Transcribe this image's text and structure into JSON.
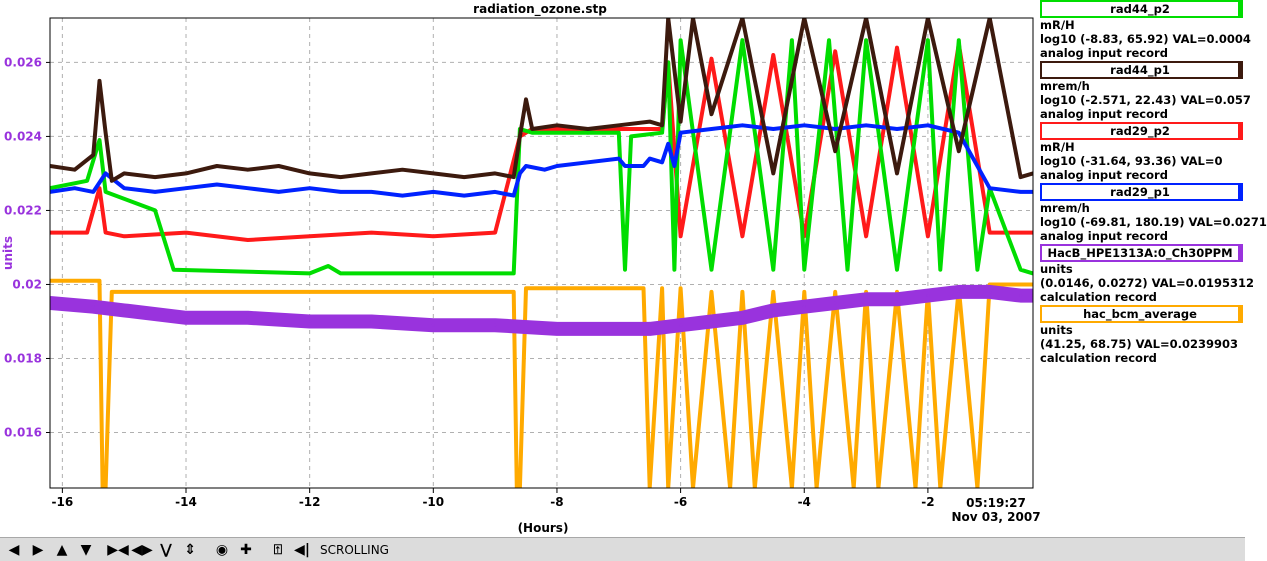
{
  "chart_data": {
    "type": "line",
    "title": "radiation_ozone.stp",
    "xlabel": "(Hours)",
    "ylabel": "units",
    "xlim": [
      -16.2,
      -0.3
    ],
    "ylim": [
      0.0145,
      0.0272
    ],
    "x_ticks": [
      -16,
      -14,
      -12,
      -10,
      -8,
      -6,
      -4,
      -2
    ],
    "y_ticks": [
      0.016,
      0.018,
      0.02,
      0.022,
      0.024,
      0.026
    ],
    "y_tick_labels": [
      "0.016",
      "0.018",
      "0.02",
      "0.022",
      "0.024",
      "0.026"
    ],
    "end_time_label": "05:19:27",
    "end_date_label": "Nov 03, 2007",
    "grid": true,
    "legend_position": "right",
    "series": [
      {
        "name": "rad44_p2",
        "color": "#00dd00",
        "x": [
          -16.2,
          -15.6,
          -15.4,
          -15.3,
          -14.5,
          -14.2,
          -12.0,
          -11.7,
          -11.5,
          -9.0,
          -8.7,
          -8.6,
          -8.4,
          -8.2,
          -7.0,
          -6.9,
          -6.8,
          -6.3,
          -6.2,
          -6.1,
          -6.0,
          -5.5,
          -5.0,
          -4.5,
          -4.2,
          -4.0,
          -3.6,
          -3.3,
          -3.0,
          -2.5,
          -2.0,
          -1.8,
          -1.5,
          -1.2,
          -1.0,
          -0.5,
          -0.3
        ],
        "values": [
          0.0226,
          0.0228,
          0.0239,
          0.0225,
          0.022,
          0.0204,
          0.0203,
          0.0205,
          0.0203,
          0.0203,
          0.0203,
          0.0242,
          0.0241,
          0.0241,
          0.0241,
          0.0204,
          0.024,
          0.0241,
          0.026,
          0.0204,
          0.0266,
          0.0204,
          0.0266,
          0.0204,
          0.0266,
          0.0204,
          0.0266,
          0.0204,
          0.0266,
          0.0204,
          0.0266,
          0.0204,
          0.0266,
          0.0204,
          0.0226,
          0.0204,
          0.0203
        ]
      },
      {
        "name": "rad44_p1",
        "color": "#3c1a0e",
        "x": [
          -16.2,
          -15.8,
          -15.5,
          -15.4,
          -15.3,
          -15.2,
          -15.0,
          -14.5,
          -14.0,
          -13.5,
          -13.0,
          -12.5,
          -12.0,
          -11.5,
          -11.0,
          -10.5,
          -10.0,
          -9.5,
          -9.0,
          -8.7,
          -8.6,
          -8.5,
          -8.4,
          -8.0,
          -7.5,
          -7.0,
          -6.5,
          -6.3,
          -6.2,
          -6.0,
          -5.8,
          -5.5,
          -5.0,
          -4.5,
          -4.0,
          -3.5,
          -3.0,
          -2.5,
          -2.0,
          -1.5,
          -1.0,
          -0.5,
          -0.3
        ],
        "values": [
          0.0232,
          0.0231,
          0.0235,
          0.0255,
          0.0241,
          0.0228,
          0.023,
          0.0229,
          0.023,
          0.0232,
          0.0231,
          0.0232,
          0.023,
          0.0229,
          0.023,
          0.0231,
          0.023,
          0.0229,
          0.023,
          0.0229,
          0.024,
          0.025,
          0.0242,
          0.0243,
          0.0242,
          0.0243,
          0.0244,
          0.0243,
          0.0272,
          0.0244,
          0.0272,
          0.0246,
          0.0272,
          0.023,
          0.0272,
          0.0236,
          0.0272,
          0.023,
          0.0272,
          0.0236,
          0.0272,
          0.0229,
          0.023
        ]
      },
      {
        "name": "rad29_p2",
        "color": "#ff1a1a",
        "x": [
          -16.2,
          -15.6,
          -15.4,
          -15.3,
          -15.0,
          -14.0,
          -13.0,
          -12.0,
          -11.0,
          -10.0,
          -9.0,
          -8.6,
          -8.5,
          -8.4,
          -8.0,
          -7.5,
          -7.0,
          -6.5,
          -6.3,
          -6.2,
          -6.0,
          -5.5,
          -5.0,
          -4.5,
          -4.0,
          -3.5,
          -3.0,
          -2.5,
          -2.0,
          -1.5,
          -1.0,
          -0.5,
          -0.3
        ],
        "values": [
          0.0214,
          0.0214,
          0.0226,
          0.0214,
          0.0213,
          0.0214,
          0.0212,
          0.0213,
          0.0214,
          0.0213,
          0.0214,
          0.024,
          0.0241,
          0.0242,
          0.0242,
          0.0241,
          0.0242,
          0.0242,
          0.0242,
          0.026,
          0.0213,
          0.0261,
          0.0213,
          0.0262,
          0.0213,
          0.0263,
          0.0213,
          0.0264,
          0.0213,
          0.0265,
          0.0214,
          0.0214,
          0.0214
        ]
      },
      {
        "name": "rad29_p1",
        "color": "#0022ff",
        "x": [
          -16.2,
          -15.8,
          -15.5,
          -15.3,
          -15.0,
          -14.5,
          -14.0,
          -13.5,
          -13.0,
          -12.5,
          -12.0,
          -11.5,
          -11.0,
          -10.5,
          -10.0,
          -9.5,
          -9.0,
          -8.7,
          -8.6,
          -8.5,
          -8.2,
          -8.0,
          -7.5,
          -7.0,
          -6.9,
          -6.6,
          -6.5,
          -6.3,
          -6.2,
          -6.1,
          -6.0,
          -5.5,
          -5.0,
          -4.5,
          -4.0,
          -3.5,
          -3.0,
          -2.5,
          -2.0,
          -1.5,
          -1.0,
          -0.5,
          -0.3
        ],
        "values": [
          0.0225,
          0.0226,
          0.0225,
          0.023,
          0.0226,
          0.0225,
          0.0226,
          0.0227,
          0.0226,
          0.0225,
          0.0226,
          0.0225,
          0.0225,
          0.0224,
          0.0225,
          0.0224,
          0.0225,
          0.0224,
          0.023,
          0.0232,
          0.0231,
          0.0232,
          0.0233,
          0.0234,
          0.0232,
          0.0232,
          0.0234,
          0.0233,
          0.0238,
          0.0232,
          0.0241,
          0.0242,
          0.0243,
          0.0242,
          0.0243,
          0.0242,
          0.0243,
          0.0242,
          0.0243,
          0.0241,
          0.0226,
          0.0225,
          0.0225
        ]
      },
      {
        "name": "HacB_HPE1313A:0_Ch30PPM",
        "color": "#9933dd",
        "x": [
          -16.2,
          -15.5,
          -15.0,
          -14.0,
          -13.0,
          -12.0,
          -11.0,
          -10.0,
          -9.0,
          -8.0,
          -7.0,
          -6.5,
          -6.0,
          -5.5,
          -5.0,
          -4.5,
          -4.0,
          -3.5,
          -3.0,
          -2.5,
          -2.0,
          -1.5,
          -1.0,
          -0.5,
          -0.3
        ],
        "values": [
          0.0195,
          0.0194,
          0.0193,
          0.0191,
          0.0191,
          0.019,
          0.019,
          0.0189,
          0.0189,
          0.0188,
          0.0188,
          0.0188,
          0.0189,
          0.019,
          0.0191,
          0.0193,
          0.0194,
          0.0195,
          0.0196,
          0.0196,
          0.0197,
          0.0198,
          0.0198,
          0.0197,
          0.0197
        ]
      },
      {
        "name": "hac_bcm_average",
        "color": "#ffaa00",
        "x": [
          -16.2,
          -15.4,
          -15.35,
          -15.3,
          -15.2,
          -8.7,
          -8.65,
          -8.6,
          -8.5,
          -6.6,
          -6.5,
          -6.3,
          -6.2,
          -6.0,
          -5.8,
          -5.5,
          -5.2,
          -5.0,
          -4.8,
          -4.5,
          -4.2,
          -4.0,
          -3.8,
          -3.5,
          -3.2,
          -3.0,
          -2.8,
          -2.5,
          -2.2,
          -2.0,
          -1.8,
          -1.5,
          -1.2,
          -1.0,
          -0.5,
          -0.3
        ],
        "values": [
          0.0201,
          0.0201,
          0.0145,
          0.0145,
          0.0198,
          0.0198,
          0.0145,
          0.0145,
          0.0199,
          0.0199,
          0.0145,
          0.0199,
          0.0145,
          0.0199,
          0.0145,
          0.0198,
          0.0145,
          0.0198,
          0.0145,
          0.0198,
          0.0145,
          0.0198,
          0.0145,
          0.0198,
          0.0145,
          0.0198,
          0.0145,
          0.0198,
          0.0145,
          0.0198,
          0.0145,
          0.0199,
          0.0145,
          0.02,
          0.02,
          0.02
        ]
      }
    ]
  },
  "legend": [
    {
      "name": "rad44_p2",
      "unit": "mR/H",
      "range": "log10 (-8.83, 65.92) VAL=0.0004",
      "record": "analog input record",
      "color": "#00dd00"
    },
    {
      "name": "rad44_p1",
      "unit": "mrem/h",
      "range": "log10 (-2.571, 22.43) VAL=0.057",
      "record": "analog input record",
      "color": "#3c1a0e"
    },
    {
      "name": "rad29_p2",
      "unit": "mR/H",
      "range": "log10 (-31.64, 93.36) VAL=0",
      "record": "analog input record",
      "color": "#ff1a1a"
    },
    {
      "name": "rad29_p1",
      "unit": "mrem/h",
      "range": "log10 (-69.81, 180.19) VAL=0.0271",
      "record": "analog input record",
      "color": "#0022ff"
    },
    {
      "name": "HacB_HPE1313A:0_Ch30PPM",
      "unit": "units",
      "range": "(0.0146, 0.0272) VAL=0.0195312",
      "record": "calculation record",
      "color": "#9933dd"
    },
    {
      "name": "hac_bcm_average",
      "unit": "units",
      "range": "(41.25, 68.75) VAL=0.0239903",
      "record": "calculation record",
      "color": "#ffaa00"
    }
  ],
  "toolbar": {
    "buttons": [
      "arrow-left-icon",
      "arrow-right-icon",
      "arrow-up-icon",
      "arrow-down-icon",
      "zoom-out-horizontal-icon",
      "zoom-in-horizontal-icon",
      "zoom-out-vertical-icon",
      "zoom-in-vertical-icon",
      "reset-icon",
      "add-icon",
      "autoscale-icon",
      "scroll-left-icon"
    ],
    "status": "SCROLLING"
  }
}
